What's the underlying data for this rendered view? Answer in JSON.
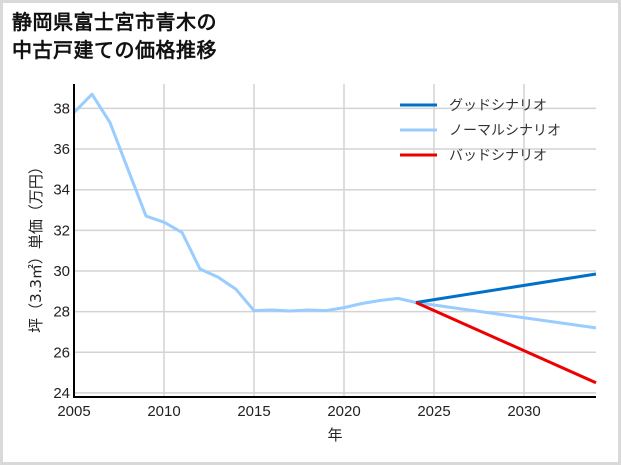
{
  "title": {
    "line1": "静岡県富士宮市青木の",
    "line2": "中古戸建ての価格推移"
  },
  "chart_data": {
    "type": "line",
    "title": "静岡県富士宮市青木の中古戸建ての価格推移",
    "xlabel": "年",
    "ylabel": "坪（3.3㎡）単価（万円）",
    "xlim": [
      2005,
      2034
    ],
    "ylim": [
      23.8,
      39.2
    ],
    "x_ticks": [
      2005,
      2010,
      2015,
      2020,
      2025,
      2030
    ],
    "y_ticks": [
      24,
      26,
      28,
      30,
      32,
      34,
      36,
      38
    ],
    "grid": true,
    "legend_position": "upper right",
    "series": [
      {
        "name": "グッドシナリオ",
        "color": "#0070c8",
        "x": [
          2024,
          2034
        ],
        "values": [
          28.45,
          29.85
        ]
      },
      {
        "name": "ノーマルシナリオ",
        "color": "#99ccff",
        "x": [
          2005,
          2006,
          2007,
          2008,
          2009,
          2010,
          2011,
          2012,
          2013,
          2014,
          2015,
          2016,
          2017,
          2018,
          2019,
          2020,
          2021,
          2022,
          2023,
          2024,
          2034
        ],
        "values": [
          37.8,
          38.7,
          37.3,
          35.0,
          32.7,
          32.4,
          31.9,
          30.1,
          29.7,
          29.1,
          28.05,
          28.08,
          28.03,
          28.08,
          28.05,
          28.2,
          28.4,
          28.55,
          28.65,
          28.45,
          27.2
        ]
      },
      {
        "name": "バッドシナリオ",
        "color": "#ee0000",
        "x": [
          2024,
          2034
        ],
        "values": [
          28.45,
          24.5
        ]
      }
    ]
  },
  "axes": {
    "xlabel": "年",
    "ylabel": "坪（3.3㎡）単価（万円）"
  },
  "legend": {
    "items": [
      {
        "label": "グッドシナリオ",
        "color": "#0070c8"
      },
      {
        "label": "ノーマルシナリオ",
        "color": "#99ccff"
      },
      {
        "label": "バッドシナリオ",
        "color": "#ee0000"
      }
    ]
  },
  "colors": {
    "grid": "#d3d3d3",
    "axis": "#000000",
    "frame": "#d9d9d9"
  }
}
